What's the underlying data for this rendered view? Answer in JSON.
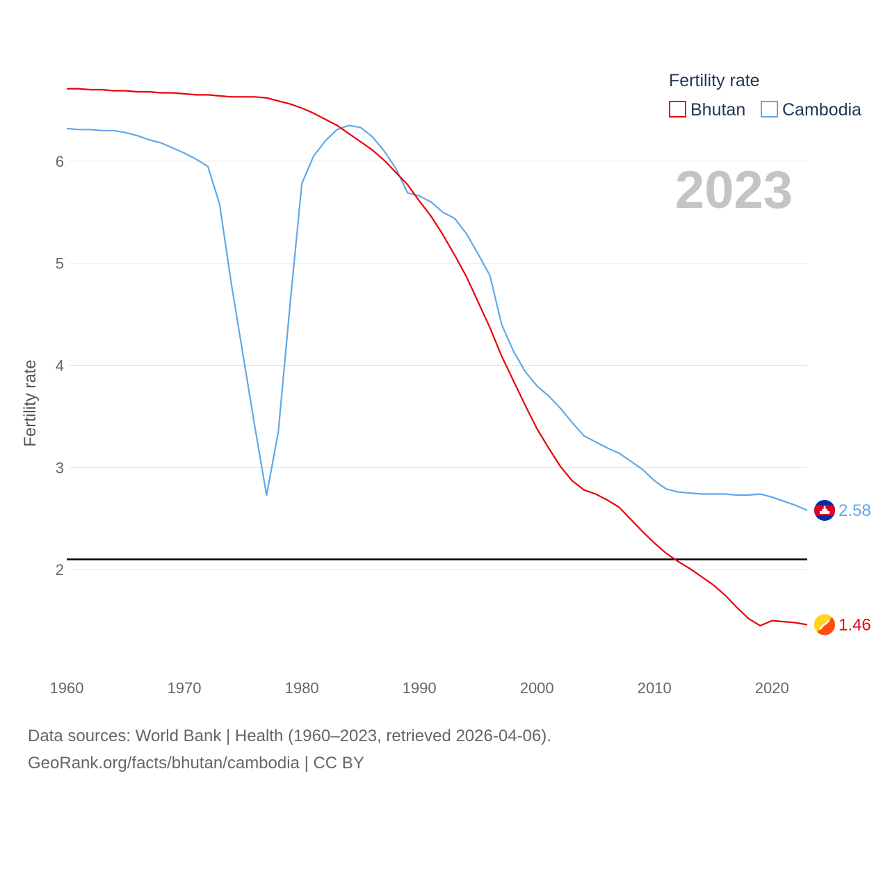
{
  "chart_data": {
    "type": "line",
    "legend_title": "Fertility rate",
    "ylabel": "Fertility rate",
    "year_label": "2023",
    "x": [
      1960,
      1961,
      1962,
      1963,
      1964,
      1965,
      1966,
      1967,
      1968,
      1969,
      1970,
      1971,
      1972,
      1973,
      1974,
      1975,
      1976,
      1977,
      1978,
      1979,
      1980,
      1981,
      1982,
      1983,
      1984,
      1985,
      1986,
      1987,
      1988,
      1989,
      1990,
      1991,
      1992,
      1993,
      1994,
      1995,
      1996,
      1997,
      1998,
      1999,
      2000,
      2001,
      2002,
      2003,
      2004,
      2005,
      2006,
      2007,
      2008,
      2009,
      2010,
      2011,
      2012,
      2013,
      2014,
      2015,
      2016,
      2017,
      2018,
      2019,
      2020,
      2021,
      2022,
      2023
    ],
    "xlim": [
      1960,
      2023
    ],
    "ylim": [
      1.0,
      7.0
    ],
    "xticks": [
      1960,
      1970,
      1980,
      1990,
      2000,
      2010,
      2020
    ],
    "yticks": [
      2,
      3,
      4,
      5,
      6
    ],
    "reference_line": 2.1,
    "series": [
      {
        "name": "Bhutan",
        "color": "#e8000b",
        "flag": "bhutan",
        "end_label": "1.46",
        "values": [
          6.71,
          6.71,
          6.7,
          6.7,
          6.69,
          6.69,
          6.68,
          6.68,
          6.67,
          6.67,
          6.66,
          6.65,
          6.65,
          6.64,
          6.63,
          6.63,
          6.63,
          6.62,
          6.59,
          6.56,
          6.52,
          6.47,
          6.41,
          6.35,
          6.27,
          6.19,
          6.11,
          6.01,
          5.89,
          5.77,
          5.61,
          5.46,
          5.28,
          5.08,
          4.87,
          4.62,
          4.37,
          4.09,
          3.85,
          3.61,
          3.38,
          3.19,
          3.01,
          2.87,
          2.78,
          2.74,
          2.68,
          2.61,
          2.49,
          2.37,
          2.26,
          2.16,
          2.08,
          2.01,
          1.93,
          1.85,
          1.75,
          1.63,
          1.52,
          1.45,
          1.5,
          1.49,
          1.48,
          1.46
        ]
      },
      {
        "name": "Cambodia",
        "color": "#5fa8e8",
        "flag": "cambodia",
        "end_label": "2.58",
        "values": [
          6.32,
          6.31,
          6.31,
          6.3,
          6.3,
          6.28,
          6.25,
          6.21,
          6.18,
          6.13,
          6.08,
          6.02,
          5.95,
          5.58,
          4.8,
          4.1,
          3.4,
          2.73,
          3.35,
          4.6,
          5.78,
          6.05,
          6.2,
          6.31,
          6.35,
          6.33,
          6.24,
          6.1,
          5.93,
          5.69,
          5.66,
          5.6,
          5.5,
          5.44,
          5.29,
          5.09,
          4.88,
          4.4,
          4.14,
          3.94,
          3.8,
          3.7,
          3.58,
          3.44,
          3.31,
          3.25,
          3.19,
          3.14,
          3.06,
          2.98,
          2.87,
          2.79,
          2.76,
          2.75,
          2.74,
          2.74,
          2.74,
          2.73,
          2.73,
          2.74,
          2.71,
          2.67,
          2.63,
          2.58
        ]
      }
    ]
  },
  "footer": {
    "line1": "Data sources: World Bank | Health (1960–2023, retrieved 2026-04-06).",
    "line2": "GeoRank.org/facts/bhutan/cambodia | CC BY"
  }
}
